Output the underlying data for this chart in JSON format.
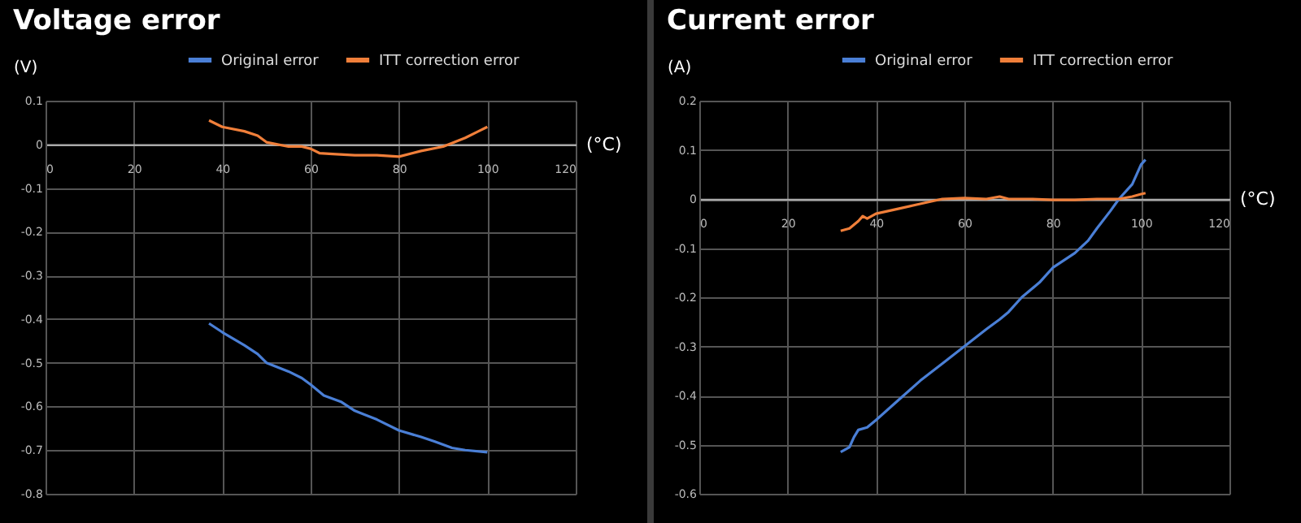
{
  "chart_data": [
    {
      "type": "line",
      "title": "Voltage error",
      "xlabel": "(°C)",
      "ylabel": "(V)",
      "xlim": [
        0,
        120
      ],
      "xticks": [
        0,
        20,
        40,
        60,
        80,
        100,
        120
      ],
      "ylim": [
        -0.8,
        0.1
      ],
      "yticks": [
        -0.8,
        -0.7,
        -0.6,
        -0.5,
        -0.4,
        -0.3,
        -0.2,
        -0.1,
        0,
        0.1
      ],
      "grid": true,
      "legend": "top right",
      "series": [
        {
          "name": "Original error",
          "color": "#4a7fd6",
          "x": [
            37,
            40,
            45,
            48,
            50,
            55,
            58,
            60,
            63,
            67,
            70,
            75,
            80,
            85,
            88,
            92,
            95,
            100
          ],
          "values": [
            -0.41,
            -0.43,
            -0.46,
            -0.48,
            -0.5,
            -0.52,
            -0.535,
            -0.55,
            -0.575,
            -0.59,
            -0.61,
            -0.63,
            -0.655,
            -0.67,
            -0.68,
            -0.695,
            -0.7,
            -0.705
          ]
        },
        {
          "name": "ITT correction error",
          "color": "#f07f3a",
          "x": [
            37,
            40,
            45,
            48,
            50,
            55,
            58,
            60,
            62,
            65,
            70,
            75,
            80,
            85,
            90,
            95,
            98,
            100
          ],
          "values": [
            0.055,
            0.04,
            0.03,
            0.02,
            0.005,
            -0.005,
            -0.005,
            -0.01,
            -0.02,
            -0.022,
            -0.025,
            -0.025,
            -0.028,
            -0.015,
            -0.005,
            0.015,
            0.03,
            0.04
          ]
        }
      ]
    },
    {
      "type": "line",
      "title": "Current error",
      "xlabel": "(°C)",
      "ylabel": "(A)",
      "xlim": [
        0,
        120
      ],
      "xticks": [
        0,
        20,
        40,
        60,
        80,
        100,
        120
      ],
      "ylim": [
        -0.6,
        0.2
      ],
      "yticks": [
        -0.6,
        -0.5,
        -0.4,
        -0.3,
        -0.2,
        -0.1,
        0,
        0.1,
        0.2
      ],
      "grid": true,
      "legend": "top right",
      "series": [
        {
          "name": "Original error",
          "color": "#4a7fd6",
          "x": [
            32,
            34,
            35,
            36,
            38,
            40,
            45,
            50,
            55,
            60,
            65,
            68,
            70,
            73,
            77,
            80,
            85,
            88,
            90,
            93,
            95,
            98,
            100,
            101
          ],
          "values": [
            -0.515,
            -0.505,
            -0.485,
            -0.47,
            -0.465,
            -0.45,
            -0.41,
            -0.37,
            -0.335,
            -0.3,
            -0.265,
            -0.245,
            -0.23,
            -0.2,
            -0.17,
            -0.14,
            -0.11,
            -0.085,
            -0.06,
            -0.025,
            0,
            0.03,
            0.07,
            0.08
          ]
        },
        {
          "name": "ITT correction error",
          "color": "#f07f3a",
          "x": [
            32,
            34,
            36,
            37,
            38,
            40,
            45,
            50,
            55,
            60,
            65,
            68,
            70,
            75,
            80,
            85,
            90,
            95,
            98,
            100,
            101
          ],
          "values": [
            -0.065,
            -0.06,
            -0.045,
            -0.035,
            -0.04,
            -0.03,
            -0.02,
            -0.01,
            0,
            0.002,
            0,
            0.005,
            0,
            0,
            -0.002,
            -0.002,
            0,
            0,
            0.005,
            0.01,
            0.012
          ]
        }
      ]
    }
  ]
}
